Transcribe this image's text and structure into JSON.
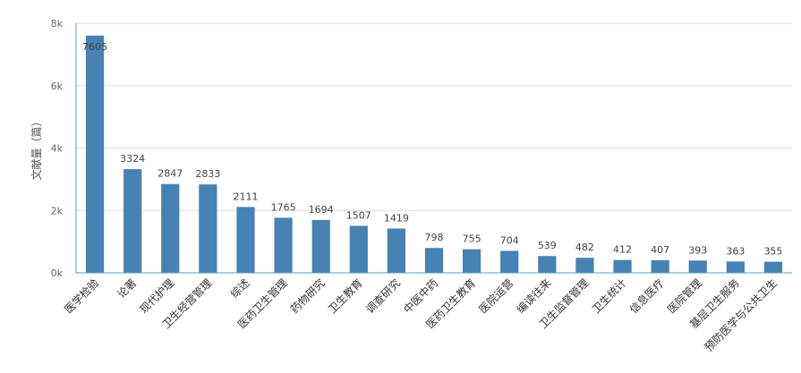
{
  "chart_data": {
    "type": "bar",
    "ylabel": "文献量（篇）",
    "ylim": [
      0,
      8000
    ],
    "yticks": [
      "0k",
      "2k",
      "4k",
      "6k",
      "8k"
    ],
    "ytick_values": [
      0,
      2000,
      4000,
      6000,
      8000
    ],
    "grid": true,
    "bar_color": "#4682b4",
    "categories": [
      "医学检验",
      "论著",
      "现代护理",
      "卫生经营管理",
      "综述",
      "医药卫生管理",
      "药物研究",
      "卫生教育",
      "调查研究",
      "中医中药",
      "医药卫生教育",
      "医院运营",
      "编读往来",
      "卫生监督管理",
      "卫生统计",
      "信息医疗",
      "医院管理",
      "基层卫生服务",
      "预防医学与公共卫生"
    ],
    "values": [
      7605,
      3324,
      2847,
      2833,
      2111,
      1765,
      1694,
      1507,
      1419,
      798,
      755,
      704,
      539,
      482,
      412,
      407,
      393,
      363,
      355
    ]
  }
}
